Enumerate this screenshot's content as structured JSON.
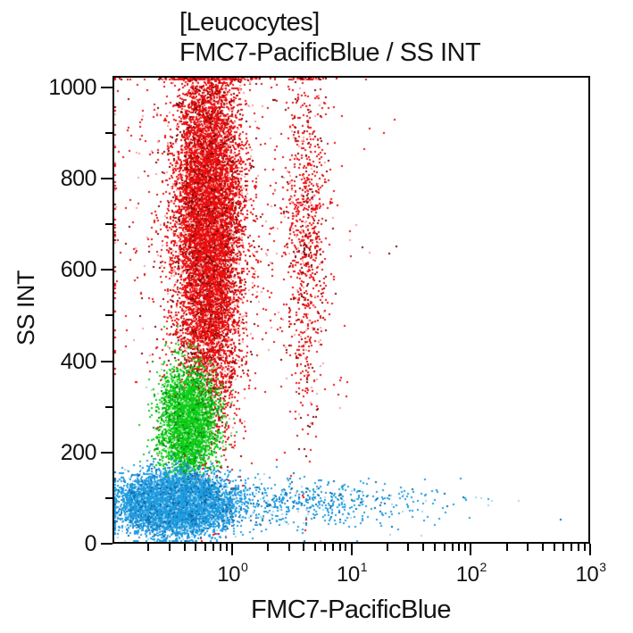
{
  "title": "[Leucocytes]",
  "subtitle": "FMC7-PacificBlue / SS INT",
  "chart_data": {
    "type": "scatter",
    "title": "[Leucocytes]",
    "subtitle": "FMC7-PacificBlue / SS INT",
    "xlabel": "FMC7-PacificBlue",
    "ylabel": "SS INT",
    "background": "#ffffff",
    "frame_color": "#000000",
    "grid": false,
    "x_scale": "log",
    "x_log_range": [
      -1,
      3
    ],
    "x_major_ticks": [
      {
        "base": "10",
        "exp": "0",
        "log10": 0
      },
      {
        "base": "10",
        "exp": "1",
        "log10": 1
      },
      {
        "base": "10",
        "exp": "2",
        "log10": 2
      },
      {
        "base": "10",
        "exp": "3",
        "log10": 3
      }
    ],
    "x_minor_mantissas": [
      2,
      3,
      4,
      5,
      6,
      7,
      8,
      9
    ],
    "y_scale": "linear",
    "y_range": [
      0,
      1025
    ],
    "y_major_ticks": [
      {
        "label": "0",
        "value": 0
      },
      {
        "label": "200",
        "value": 200
      },
      {
        "label": "400",
        "value": 400
      },
      {
        "label": "600",
        "value": 600
      },
      {
        "label": "800",
        "value": 800
      },
      {
        "label": "1000",
        "value": 1000
      }
    ],
    "y_minor_values": [
      100,
      300,
      500,
      700,
      900
    ],
    "dot_size_px": 2,
    "random_seed": 42,
    "populations": [
      {
        "name": "granulocytes-main",
        "color": "#ea1010",
        "color_dark": "#7d0606",
        "color_light": "#f79f9f",
        "count": 11500,
        "x_log_mean": -0.2,
        "x_log_sd": 0.135,
        "y_mean": 690,
        "y_sd": 200,
        "clamp_top": true
      },
      {
        "name": "granulocytes-right-streak",
        "color": "#ea1010",
        "color_dark": "#7d0606",
        "color_light": "#f79f9f",
        "count": 900,
        "x_log_mean": 0.62,
        "x_log_sd": 0.09,
        "y_mean": 680,
        "y_sd": 210,
        "clamp_top": true
      },
      {
        "name": "granulocytes-scatter",
        "color": "#ea1010",
        "color_dark": "#7d0606",
        "color_light": "#f79f9f",
        "count": 700,
        "x_log_mean": -0.15,
        "x_log_sd": 0.55,
        "y_mean": 700,
        "y_sd": 210,
        "clamp_top": true
      },
      {
        "name": "monocytes",
        "color": "#0fce18",
        "color_dark": "#0a8a10",
        "color_light": "#96eb9b",
        "count": 3900,
        "x_log_mean": -0.37,
        "x_log_sd": 0.115,
        "y_mean": 268,
        "y_sd": 56,
        "clamp_top": false
      },
      {
        "name": "lymphocytes-main",
        "color": "#209ce0",
        "color_dark": "#0e6aa8",
        "color_light": "#9fd6f2",
        "count": 9500,
        "x_log_mean": -0.47,
        "x_log_sd": 0.21,
        "y_mean": 88,
        "y_sd": 30,
        "clamp_top": false
      },
      {
        "name": "lymphocytes-tail",
        "color": "#209ce0",
        "color_dark": "#0e6aa8",
        "color_light": "#9fd6f2",
        "count": 700,
        "x_log_mean": 0.55,
        "x_log_sd": 0.62,
        "y_mean": 92,
        "y_sd": 26,
        "clamp_top": false
      }
    ]
  }
}
